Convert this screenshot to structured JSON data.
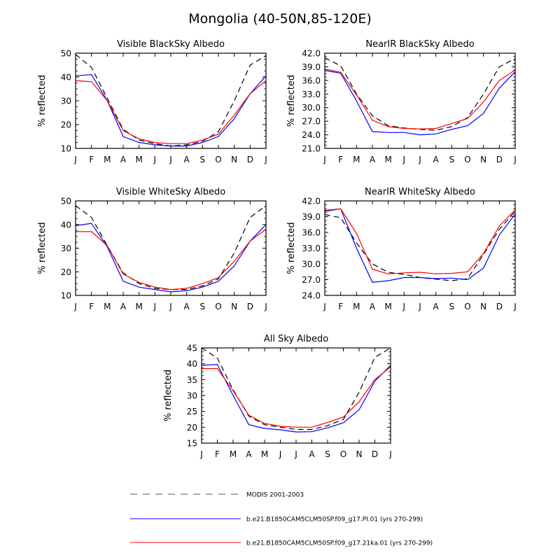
{
  "figure": {
    "title": "Mongolia (40-50N,85-120E)"
  },
  "legend": {
    "items": [
      {
        "label": "MODIS 2001-2003",
        "color": "#000000",
        "dash": "dashed"
      },
      {
        "label": "b.e21.B1850CAM5CLM50SP.f09_g17.PI.01 (yrs 270-299)",
        "color": "#0000ff",
        "dash": "solid"
      },
      {
        "label": "b.e21.B1850CAM5CLM50SP.f09_g17.21ka.01 (yrs 270-299)",
        "color": "#ff0000",
        "dash": "solid"
      }
    ]
  },
  "chart_data": [
    {
      "type": "line",
      "title": "Visible BlackSky Albedo",
      "xlabel": "",
      "ylabel": "% reflected",
      "categories": [
        "J",
        "F",
        "M",
        "A",
        "M",
        "J",
        "J",
        "A",
        "S",
        "O",
        "N",
        "D",
        "J"
      ],
      "ylim": [
        10,
        50
      ],
      "yticks": [
        10,
        20,
        30,
        40,
        50
      ],
      "ytick_labels": [
        "10",
        "20",
        "30",
        "40",
        "50"
      ],
      "grid": false,
      "series": [
        {
          "name": "MODIS 2001-2003",
          "values": [
            49.5,
            44,
            31,
            18,
            13.5,
            12,
            11,
            11.5,
            13,
            17,
            30,
            45,
            49
          ]
        },
        {
          "name": "b.e21.B1850CAM5CLM50SP.f09_g17.PI.01 (yrs 270-299)",
          "values": [
            40.5,
            41,
            30,
            15,
            12.5,
            11.5,
            11,
            11,
            12.5,
            15,
            22.5,
            33,
            40.5
          ]
        },
        {
          "name": "b.e21.B1850CAM5CLM50SP.f09_g17.21ka.01 (yrs 270-299)",
          "values": [
            38.5,
            38,
            30,
            17.5,
            14,
            12.5,
            12,
            12,
            13.5,
            16,
            24,
            33,
            38.5
          ]
        }
      ]
    },
    {
      "type": "line",
      "title": "NearIR BlackSky Albedo",
      "xlabel": "",
      "ylabel": "% reflected",
      "categories": [
        "J",
        "F",
        "M",
        "A",
        "M",
        "J",
        "J",
        "A",
        "S",
        "O",
        "N",
        "D",
        "J"
      ],
      "ylim": [
        21,
        42
      ],
      "yticks": [
        21,
        24,
        27,
        30,
        33,
        36,
        39,
        42
      ],
      "ytick_labels": [
        "21.0",
        "24.0",
        "27.0",
        "30.0",
        "33.0",
        "36.0",
        "39.0",
        "42.0"
      ],
      "grid": false,
      "series": [
        {
          "name": "MODIS 2001-2003",
          "values": [
            41,
            39.2,
            33,
            28.2,
            26,
            25.5,
            25.2,
            25,
            25.8,
            27.8,
            33,
            39,
            40.8
          ]
        },
        {
          "name": "b.e21.B1850CAM5CLM50SP.f09_g17.PI.01 (yrs 270-299)",
          "values": [
            38.2,
            37.6,
            31.5,
            24.7,
            24.5,
            24.5,
            24,
            24.2,
            25.2,
            26,
            28.7,
            34.3,
            37.9
          ]
        },
        {
          "name": "b.e21.B1850CAM5CLM50SP.f09_g17.21ka.01 (yrs 270-299)",
          "values": [
            38.5,
            37.8,
            32.8,
            27.2,
            25.8,
            25.4,
            25.3,
            25.4,
            26.5,
            27.6,
            31.2,
            36,
            38.3
          ]
        }
      ]
    },
    {
      "type": "line",
      "title": "Visible WhiteSky Albedo",
      "xlabel": "",
      "ylabel": "% reflected",
      "categories": [
        "J",
        "F",
        "M",
        "A",
        "M",
        "J",
        "J",
        "A",
        "S",
        "O",
        "N",
        "D",
        "J"
      ],
      "ylim": [
        10,
        50
      ],
      "yticks": [
        10,
        20,
        30,
        40,
        50
      ],
      "ytick_labels": [
        "10",
        "20",
        "30",
        "40",
        "50"
      ],
      "grid": false,
      "series": [
        {
          "name": "MODIS 2001-2003",
          "values": [
            48,
            43,
            31,
            19.5,
            15,
            13,
            12.5,
            12.5,
            14,
            17,
            28,
            43,
            48
          ]
        },
        {
          "name": "b.e21.B1850CAM5CLM50SP.f09_g17.PI.01 (yrs 270-299)",
          "values": [
            39.5,
            40.5,
            30.5,
            16,
            13.5,
            12.5,
            11.5,
            12,
            13.5,
            16,
            22.5,
            33,
            40
          ]
        },
        {
          "name": "b.e21.B1850CAM5CLM50SP.f09_g17.21ka.01 (yrs 270-299)",
          "values": [
            37,
            37,
            31,
            19,
            15.5,
            13.5,
            12.5,
            13,
            15,
            17.5,
            24.5,
            33,
            38
          ]
        }
      ]
    },
    {
      "type": "line",
      "title": "NearIR WhiteSky Albedo",
      "xlabel": "",
      "ylabel": "% reflected",
      "categories": [
        "J",
        "F",
        "M",
        "A",
        "M",
        "J",
        "J",
        "A",
        "S",
        "O",
        "N",
        "D",
        "J"
      ],
      "ylim": [
        24,
        42
      ],
      "yticks": [
        24,
        27,
        30,
        33,
        36,
        39,
        42
      ],
      "ytick_labels": [
        "24.0",
        "27.0",
        "30.0",
        "33.0",
        "36.0",
        "39.0",
        "42.0"
      ],
      "grid": false,
      "series": [
        {
          "name": "MODIS 2001-2003",
          "values": [
            39.4,
            38.8,
            34,
            30,
            28.4,
            28,
            27.4,
            27.1,
            26.8,
            27.2,
            31.8,
            36.6,
            40
          ]
        },
        {
          "name": "b.e21.B1850CAM5CLM50SP.f09_g17.PI.01 (yrs 270-299)",
          "values": [
            40,
            40.5,
            33,
            26.5,
            26.8,
            27.4,
            27.4,
            27.2,
            27.3,
            27,
            29.2,
            35.5,
            39.5
          ]
        },
        {
          "name": "b.e21.B1850CAM5CLM50SP.f09_g17.21ka.01 (yrs 270-299)",
          "values": [
            40.2,
            40.5,
            35.8,
            29,
            28.1,
            28.3,
            28.4,
            28.1,
            28.2,
            28.5,
            32,
            37.2,
            40.3
          ]
        }
      ]
    },
    {
      "type": "line",
      "title": "All Sky Albedo",
      "xlabel": "",
      "ylabel": "% reflected",
      "categories": [
        "J",
        "F",
        "M",
        "A",
        "M",
        "J",
        "J",
        "A",
        "S",
        "O",
        "N",
        "D",
        "J"
      ],
      "ylim": [
        15,
        45
      ],
      "yticks": [
        15,
        20,
        25,
        30,
        35,
        40,
        45
      ],
      "ytick_labels": [
        "15",
        "20",
        "25",
        "30",
        "35",
        "40",
        "45"
      ],
      "grid": false,
      "series": [
        {
          "name": "MODIS 2001-2003",
          "values": [
            45,
            41.8,
            31.8,
            23.5,
            20.8,
            20,
            19.3,
            19.3,
            20.5,
            22.5,
            31,
            42,
            45
          ]
        },
        {
          "name": "b.e21.B1850CAM5CLM50SP.f09_g17.PI.01 (yrs 270-299)",
          "values": [
            39.5,
            39.8,
            30,
            20.8,
            19.6,
            19.2,
            18.5,
            18.6,
            19.8,
            21.4,
            25.5,
            34.5,
            39.5
          ]
        },
        {
          "name": "b.e21.B1850CAM5CLM50SP.f09_g17.21ka.01 (yrs 270-299)",
          "values": [
            38.5,
            38.5,
            31.5,
            23.8,
            21.2,
            20.3,
            20,
            20,
            21.5,
            23.2,
            28,
            35,
            39
          ]
        }
      ]
    }
  ]
}
